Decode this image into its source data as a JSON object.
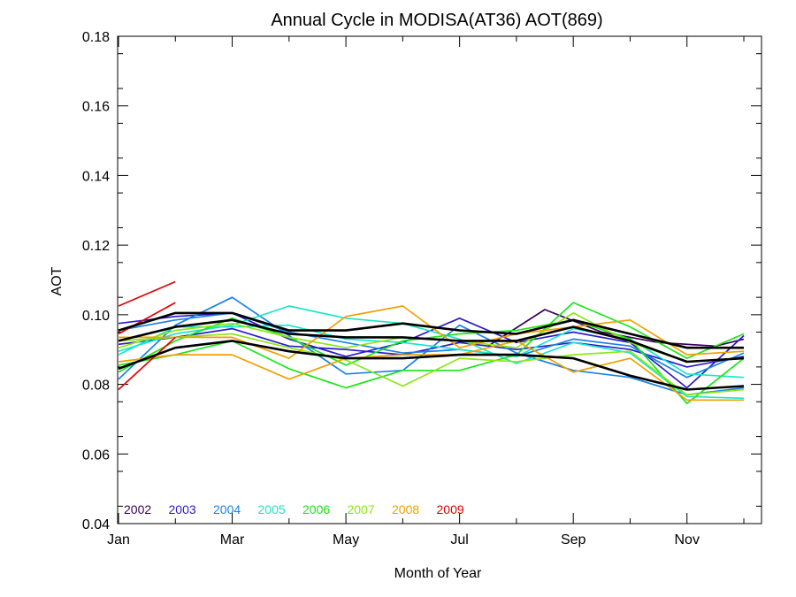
{
  "chart_data": {
    "type": "line",
    "title": "Annual Cycle in MODISA(AT36) AOT(869)",
    "xlabel": "Month of Year",
    "ylabel": "AOT",
    "xlim": [
      1,
      12
    ],
    "ylim": [
      0.04,
      0.18
    ],
    "xticks": [
      {
        "value": 1,
        "label": "Jan"
      },
      {
        "value": 3,
        "label": "Mar"
      },
      {
        "value": 5,
        "label": "May"
      },
      {
        "value": 7,
        "label": "Jul"
      },
      {
        "value": 9,
        "label": "Sep"
      },
      {
        "value": 11,
        "label": "Nov"
      }
    ],
    "yticks": [
      {
        "value": 0.04,
        "label": "0.04"
      },
      {
        "value": 0.06,
        "label": "0.06"
      },
      {
        "value": 0.08,
        "label": "0.08"
      },
      {
        "value": 0.1,
        "label": "0.10"
      },
      {
        "value": 0.12,
        "label": "0.12"
      },
      {
        "value": 0.14,
        "label": "0.14"
      },
      {
        "value": 0.16,
        "label": "0.16"
      },
      {
        "value": 0.18,
        "label": "0.18"
      }
    ],
    "legend_placement": "bottom-left inside plot",
    "series": [
      {
        "name": "2002",
        "color": "#3a0058",
        "lines": [
          [
            [
              7.5,
              0.091
            ],
            [
              8.5,
              0.1015
            ],
            [
              9.5,
              0.095
            ],
            [
              10.5,
              0.092
            ],
            [
              11.5,
              0.091
            ],
            [
              12,
              0.093
            ]
          ]
        ]
      },
      {
        "name": "2003",
        "color": "#2a1cc8",
        "lines": [
          [
            [
              1,
              0.0975
            ],
            [
              2,
              0.0995
            ],
            [
              3,
              0.1005
            ],
            [
              4,
              0.093
            ],
            [
              5,
              0.088
            ],
            [
              6,
              0.092
            ],
            [
              7,
              0.099
            ],
            [
              8,
              0.092
            ],
            [
              9,
              0.095
            ],
            [
              10,
              0.092
            ],
            [
              11,
              0.079
            ],
            [
              12,
              0.094
            ]
          ],
          [
            [
              1,
              0.0915
            ],
            [
              2,
              0.0935
            ],
            [
              3,
              0.096
            ],
            [
              4,
              0.091
            ],
            [
              5,
              0.09
            ],
            [
              6,
              0.0885
            ],
            [
              7,
              0.092
            ],
            [
              8,
              0.09
            ],
            [
              9,
              0.092
            ],
            [
              10,
              0.09
            ],
            [
              11,
              0.085
            ],
            [
              12,
              0.088
            ]
          ]
        ]
      },
      {
        "name": "2004",
        "color": "#1a82e6",
        "lines": [
          [
            [
              1,
              0.0815
            ],
            [
              2,
              0.097
            ],
            [
              3,
              0.105
            ],
            [
              4,
              0.094
            ],
            [
              5,
              0.083
            ],
            [
              6,
              0.084
            ],
            [
              7,
              0.097
            ],
            [
              8,
              0.089
            ],
            [
              9,
              0.084
            ],
            [
              10,
              0.082
            ],
            [
              11,
              0.077
            ],
            [
              12,
              0.079
            ]
          ],
          [
            [
              1,
              0.0955
            ],
            [
              2,
              0.0985
            ],
            [
              3,
              0.1005
            ],
            [
              4,
              0.095
            ],
            [
              5,
              0.092
            ],
            [
              6,
              0.089
            ],
            [
              7,
              0.09
            ],
            [
              8,
              0.088
            ],
            [
              9,
              0.093
            ],
            [
              10,
              0.091
            ],
            [
              11,
              0.082
            ],
            [
              12,
              0.089
            ]
          ]
        ]
      },
      {
        "name": "2005",
        "color": "#1ae6c8",
        "lines": [
          [
            [
              1,
              0.0895
            ],
            [
              2,
              0.0945
            ],
            [
              3,
              0.097
            ],
            [
              4,
              0.1025
            ],
            [
              5,
              0.099
            ],
            [
              6,
              0.0975
            ],
            [
              7,
              0.093
            ],
            [
              8,
              0.086
            ],
            [
              9,
              0.092
            ],
            [
              10,
              0.089
            ],
            [
              11,
              0.0765
            ],
            [
              12,
              0.076
            ]
          ],
          [
            [
              1,
              0.0885
            ],
            [
              2,
              0.0965
            ],
            [
              3,
              0.0965
            ],
            [
              4,
              0.097
            ],
            [
              5,
              0.093
            ],
            [
              6,
              0.092
            ],
            [
              7,
              0.09
            ],
            [
              8,
              0.088
            ],
            [
              9,
              0.096
            ],
            [
              10,
              0.093
            ],
            [
              11,
              0.083
            ],
            [
              12,
              0.082
            ]
          ]
        ]
      },
      {
        "name": "2006",
        "color": "#1ae61a",
        "lines": [
          [
            [
              1,
              0.0855
            ],
            [
              2,
              0.0885
            ],
            [
              3,
              0.0925
            ],
            [
              4,
              0.0845
            ],
            [
              5,
              0.079
            ],
            [
              6,
              0.084
            ],
            [
              7,
              0.084
            ],
            [
              8,
              0.0885
            ],
            [
              9,
              0.1035
            ],
            [
              10,
              0.0965
            ],
            [
              11,
              0.0875
            ],
            [
              12,
              0.0945
            ]
          ],
          [
            [
              1,
              0.0835
            ],
            [
              2,
              0.0925
            ],
            [
              3,
              0.099
            ],
            [
              4,
              0.0935
            ],
            [
              5,
              0.0855
            ],
            [
              6,
              0.0925
            ],
            [
              7,
              0.0945
            ],
            [
              8,
              0.0955
            ],
            [
              9,
              0.0985
            ],
            [
              10,
              0.093
            ],
            [
              11,
              0.0745
            ],
            [
              12,
              0.0875
            ]
          ]
        ]
      },
      {
        "name": "2007",
        "color": "#8ce61a",
        "lines": [
          [
            [
              1,
              0.0925
            ],
            [
              2,
              0.0935
            ],
            [
              3,
              0.0945
            ],
            [
              4,
              0.0905
            ],
            [
              5,
              0.087
            ],
            [
              6,
              0.0795
            ],
            [
              7,
              0.0875
            ],
            [
              8,
              0.0865
            ],
            [
              9,
              0.0885
            ],
            [
              10,
              0.0895
            ],
            [
              11,
              0.077
            ],
            [
              12,
              0.0785
            ]
          ],
          [
            [
              1,
              0.0905
            ],
            [
              2,
              0.0955
            ],
            [
              3,
              0.0975
            ],
            [
              4,
              0.0935
            ],
            [
              5,
              0.0905
            ],
            [
              6,
              0.0935
            ],
            [
              7,
              0.0925
            ],
            [
              8,
              0.0905
            ],
            [
              9,
              0.1005
            ],
            [
              10,
              0.092
            ],
            [
              11,
              0.0865
            ],
            [
              12,
              0.0875
            ]
          ]
        ]
      },
      {
        "name": "2008",
        "color": "#f0a000",
        "lines": [
          [
            [
              1,
              0.0865
            ],
            [
              2,
              0.0885
            ],
            [
              3,
              0.0885
            ],
            [
              4,
              0.0815
            ],
            [
              5,
              0.0875
            ],
            [
              6,
              0.0885
            ],
            [
              7,
              0.0885
            ],
            [
              8,
              0.0925
            ],
            [
              9,
              0.0835
            ],
            [
              10,
              0.0875
            ],
            [
              11,
              0.0755
            ],
            [
              12,
              0.0755
            ]
          ],
          [
            [
              1,
              0.0935
            ],
            [
              2,
              0.0935
            ],
            [
              3,
              0.0935
            ],
            [
              4,
              0.0875
            ],
            [
              5,
              0.0995
            ],
            [
              6,
              0.1025
            ],
            [
              7,
              0.0905
            ],
            [
              8,
              0.0945
            ],
            [
              9,
              0.0965
            ],
            [
              10,
              0.0985
            ],
            [
              11,
              0.0885
            ],
            [
              12,
              0.0895
            ]
          ]
        ]
      },
      {
        "name": "2009",
        "color": "#e60000",
        "lines": [
          [
            [
              1,
              0.1025
            ],
            [
              2,
              0.1095
            ]
          ],
          [
            [
              1,
              0.0785
            ],
            [
              2,
              0.0935
            ]
          ],
          [
            [
              1,
              0.0945
            ],
            [
              2,
              0.1035
            ]
          ]
        ]
      },
      {
        "name": "",
        "color": "#000000",
        "emphasis": true,
        "lines": [
          [
            [
              1,
              0.0955
            ],
            [
              2,
              0.1005
            ],
            [
              3,
              0.1005
            ],
            [
              4,
              0.0955
            ],
            [
              5,
              0.0955
            ],
            [
              6,
              0.0975
            ],
            [
              7,
              0.0955
            ],
            [
              8,
              0.0945
            ],
            [
              9,
              0.0985
            ],
            [
              10,
              0.0945
            ],
            [
              11,
              0.0905
            ],
            [
              12,
              0.0905
            ]
          ],
          [
            [
              1,
              0.0925
            ],
            [
              2,
              0.0965
            ],
            [
              3,
              0.0985
            ],
            [
              4,
              0.0945
            ],
            [
              5,
              0.0935
            ],
            [
              6,
              0.0935
            ],
            [
              7,
              0.0925
            ],
            [
              8,
              0.0925
            ],
            [
              9,
              0.0965
            ],
            [
              10,
              0.0925
            ],
            [
              11,
              0.0865
            ],
            [
              12,
              0.0875
            ]
          ],
          [
            [
              1,
              0.0845
            ],
            [
              2,
              0.0905
            ],
            [
              3,
              0.0925
            ],
            [
              4,
              0.0895
            ],
            [
              5,
              0.0875
            ],
            [
              6,
              0.0875
            ],
            [
              7,
              0.0885
            ],
            [
              8,
              0.0885
            ],
            [
              9,
              0.0875
            ],
            [
              10,
              0.0825
            ],
            [
              11,
              0.0785
            ],
            [
              12,
              0.0795
            ]
          ]
        ]
      }
    ]
  }
}
